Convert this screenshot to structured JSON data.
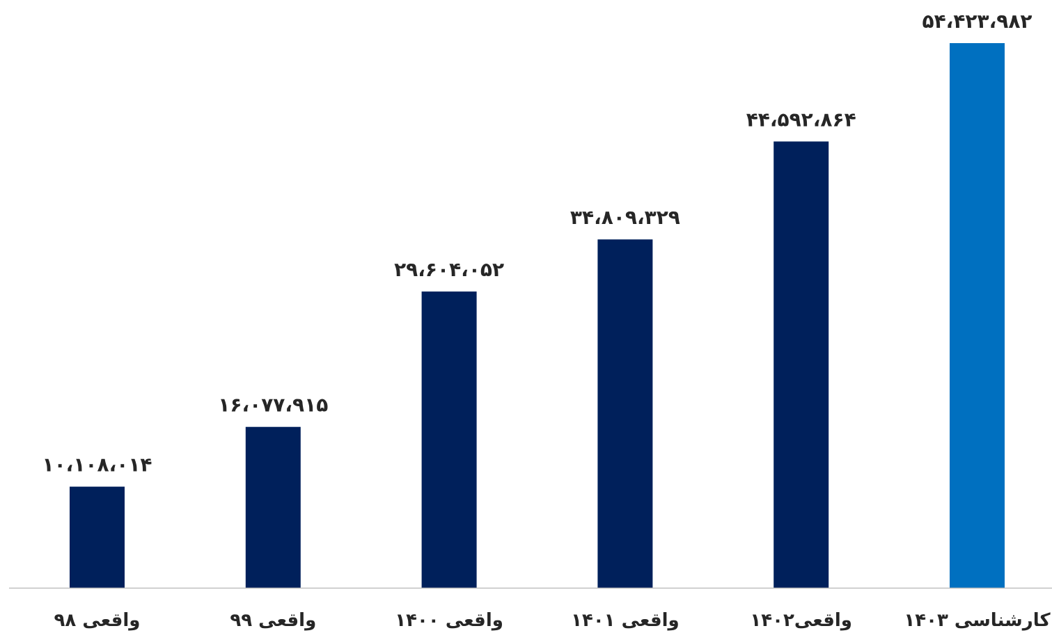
{
  "chart_data": {
    "type": "bar",
    "title": "",
    "xlabel": "",
    "ylabel": "",
    "ylim": [
      0,
      54423982
    ],
    "grid": false,
    "legend": "none",
    "categories": [
      "واقعی ۹۸",
      "واقعی ۹۹",
      "واقعی ۱۴۰۰",
      "واقعی ۱۴۰۱",
      "واقعی۱۴۰۲",
      "کارشناسی ۱۴۰۳"
    ],
    "values": [
      10108014,
      16077915,
      29604052,
      34809329,
      44592864,
      54423982
    ],
    "value_labels": [
      "۱۰،۱۰۸،۰۱۴",
      "۱۶،۰۷۷،۹۱۵",
      "۲۹،۶۰۴،۰۵۲",
      "۳۴،۸۰۹،۳۲۹",
      "۴۴،۵۹۲،۸۶۴",
      "۵۴،۴۲۳،۹۸۲"
    ],
    "bar_colors": [
      "#00205b",
      "#00205b",
      "#00205b",
      "#00205b",
      "#00205b",
      "#0070c0"
    ],
    "axis_color": "#bfbfbf"
  }
}
